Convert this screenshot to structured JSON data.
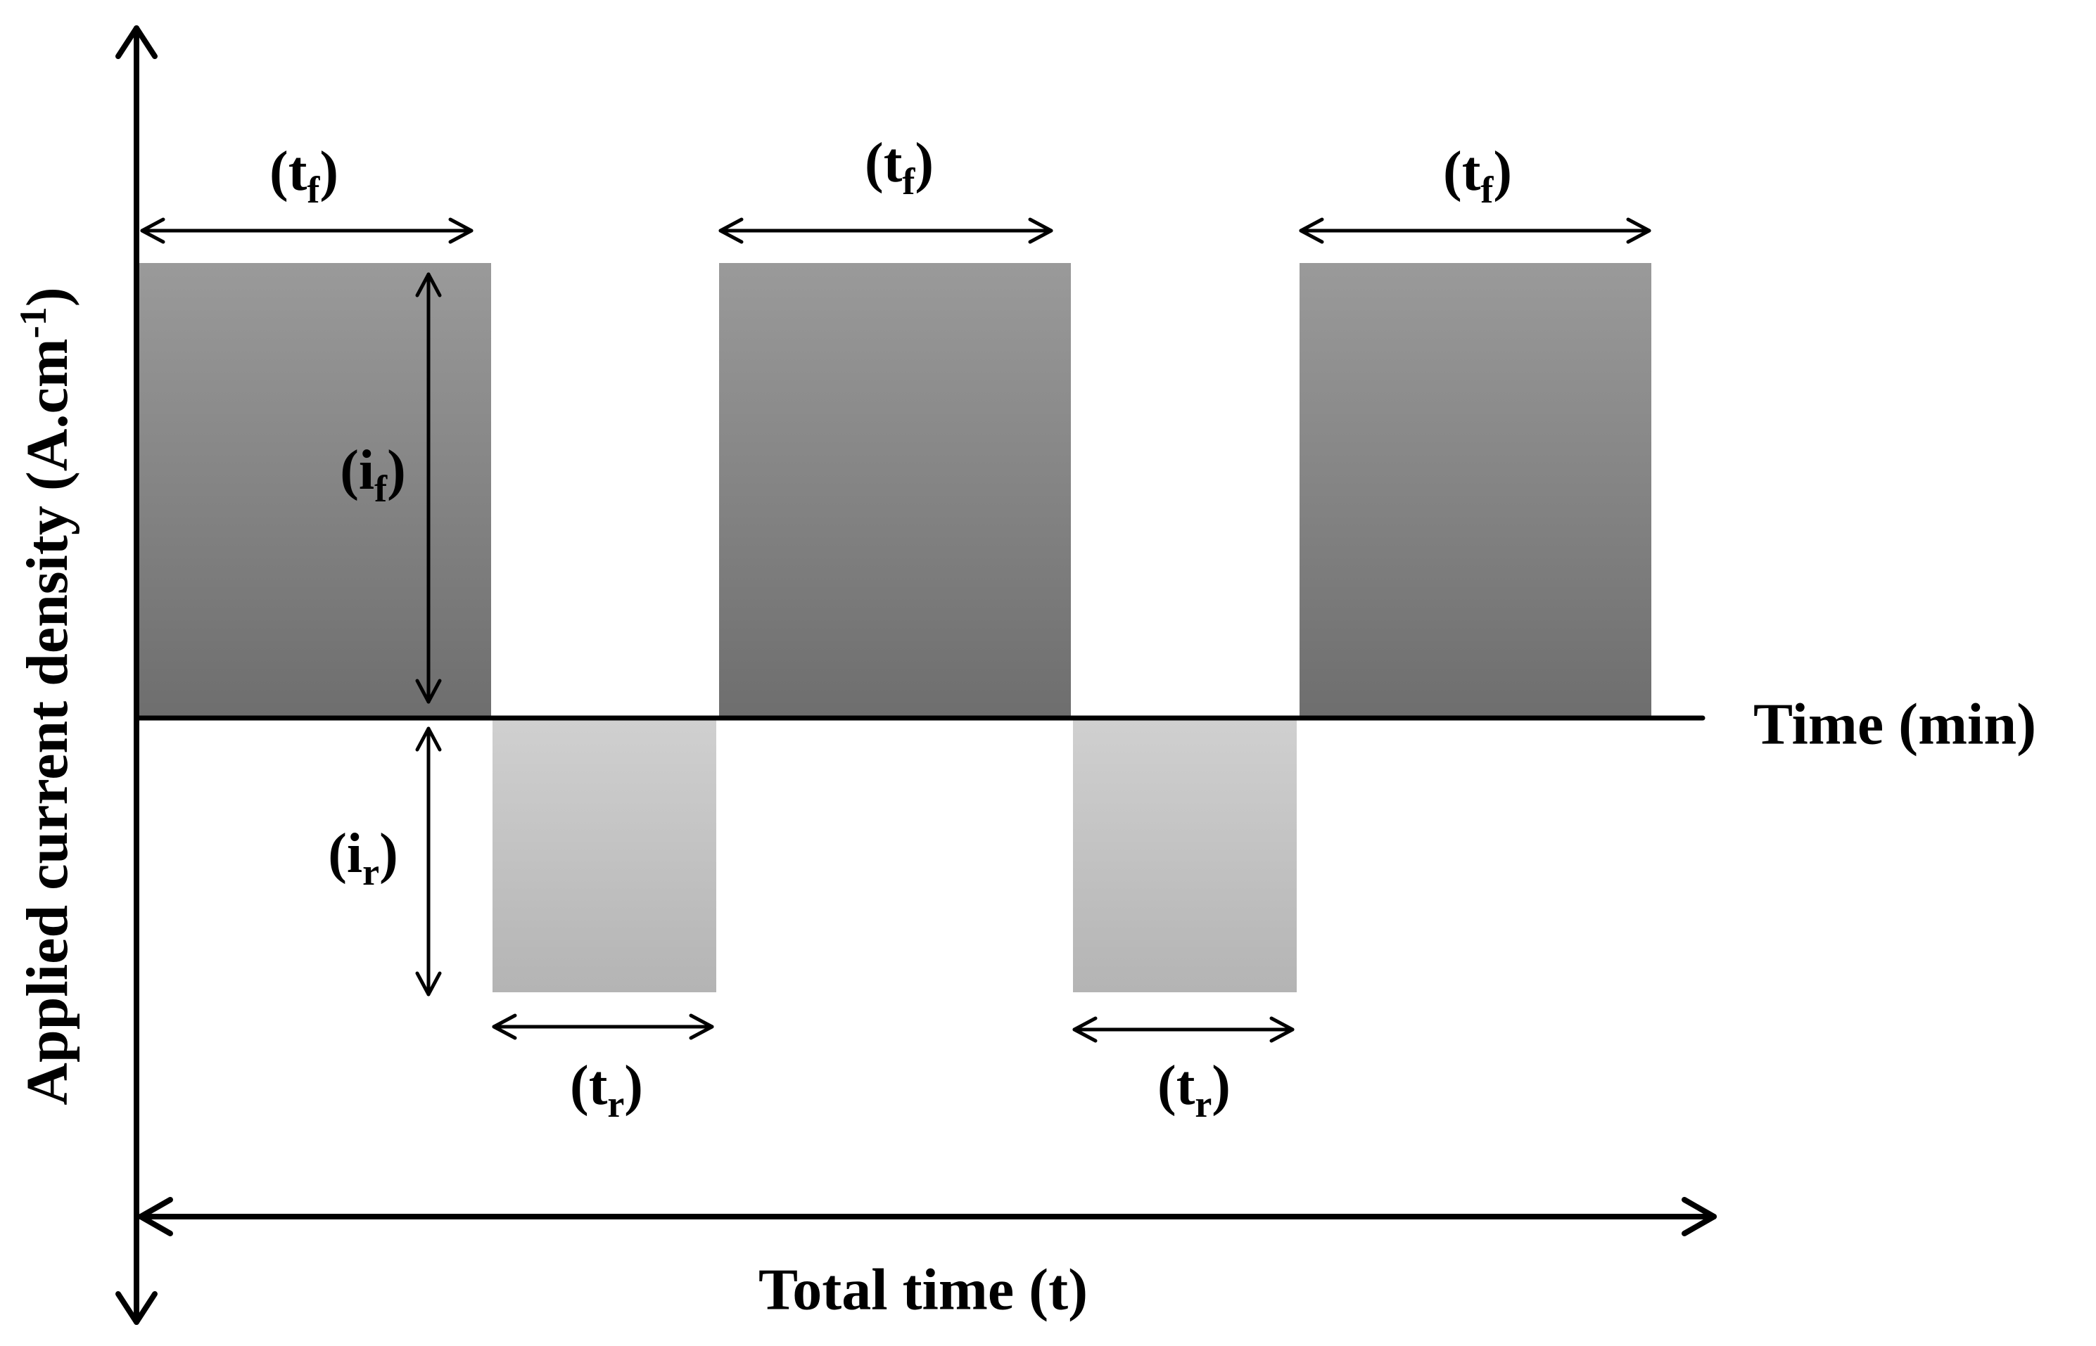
{
  "labels": {
    "y_axis": "Applied current density (A.cm",
    "y_axis_sup": "-1",
    "y_axis_close": ")",
    "x_axis": "Time (min)",
    "total_time": "Total time (t)"
  },
  "annotations": {
    "tf_main": "(t",
    "tf_sub": "f",
    "tr_main": "(t",
    "tr_sub": "r",
    "if_main": "(i",
    "if_sub": "f",
    "ir_main": "(i",
    "ir_sub": "r",
    "close": ")"
  },
  "colors": {
    "forward_top": "#9a9a9a",
    "forward_bottom": "#6e6e6e",
    "reverse_top": "#d0d0d0",
    "reverse_bottom": "#b4b4b4",
    "line": "#000000"
  }
}
